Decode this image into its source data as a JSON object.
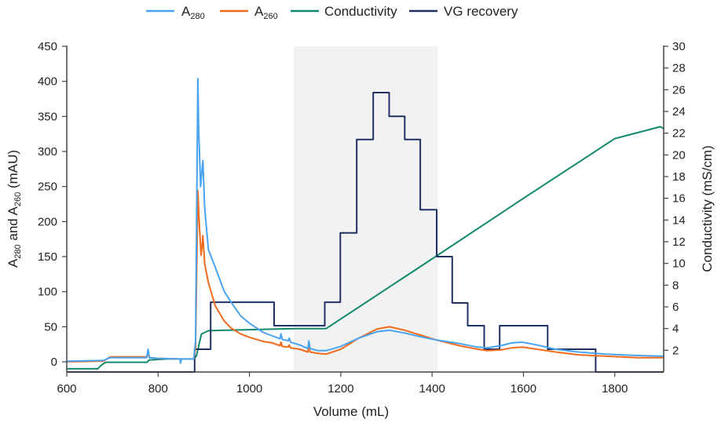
{
  "chart_data": {
    "type": "line",
    "title": "",
    "xlabel": "Volume (mL)",
    "ylabel": {
      "main": "A",
      "sub1": "280",
      "mid": " and A",
      "sub2": "260",
      "tail": " (mAU)"
    },
    "y2label": "Conductivity (mS/cm)",
    "xlim": [
      600,
      1907
    ],
    "ylim": [
      -14.5,
      450
    ],
    "y2lim": [
      0,
      30
    ],
    "xticks": [
      600,
      800,
      1000,
      1200,
      1400,
      1600,
      1800
    ],
    "yticks": [
      0,
      50,
      100,
      150,
      200,
      250,
      300,
      350,
      400,
      450
    ],
    "y2ticks": [
      2,
      4,
      6,
      8,
      10,
      12,
      14,
      16,
      18,
      20,
      22,
      24,
      26,
      28,
      30
    ],
    "grid": false,
    "legend_position": "top-center",
    "shaded_region": {
      "x0": 1097,
      "x1": 1413,
      "color": "#f2f2f2"
    },
    "series": [
      {
        "name": "A280",
        "name_main": "A",
        "name_sub": "280",
        "color": "#4aa3f0",
        "axis": "left",
        "points": [
          [
            600,
            1
          ],
          [
            680,
            2
          ],
          [
            695,
            6
          ],
          [
            775,
            6
          ],
          [
            778,
            18
          ],
          [
            781,
            6
          ],
          [
            800,
            5
          ],
          [
            848,
            4
          ],
          [
            849,
            -2
          ],
          [
            851,
            4
          ],
          [
            878,
            4
          ],
          [
            882,
            30
          ],
          [
            885,
            250
          ],
          [
            887,
            404
          ],
          [
            889,
            330
          ],
          [
            893,
            250
          ],
          [
            897,
            280
          ],
          [
            898,
            287
          ],
          [
            902,
            220
          ],
          [
            910,
            160
          ],
          [
            925,
            135
          ],
          [
            945,
            100
          ],
          [
            960,
            85
          ],
          [
            980,
            66
          ],
          [
            1000,
            55
          ],
          [
            1030,
            42
          ],
          [
            1050,
            37
          ],
          [
            1067,
            33
          ],
          [
            1069,
            40
          ],
          [
            1072,
            32
          ],
          [
            1085,
            30
          ],
          [
            1087,
            34
          ],
          [
            1090,
            28
          ],
          [
            1110,
            24
          ],
          [
            1128,
            19
          ],
          [
            1130,
            30
          ],
          [
            1133,
            19
          ],
          [
            1150,
            16
          ],
          [
            1168,
            16
          ],
          [
            1200,
            22
          ],
          [
            1240,
            34
          ],
          [
            1280,
            43
          ],
          [
            1307,
            45
          ],
          [
            1340,
            41
          ],
          [
            1380,
            35
          ],
          [
            1410,
            31
          ],
          [
            1460,
            26
          ],
          [
            1500,
            21
          ],
          [
            1520,
            20
          ],
          [
            1550,
            23
          ],
          [
            1575,
            27
          ],
          [
            1598,
            28
          ],
          [
            1630,
            24
          ],
          [
            1670,
            18
          ],
          [
            1720,
            14
          ],
          [
            1780,
            11
          ],
          [
            1850,
            9
          ],
          [
            1907,
            8
          ]
        ]
      },
      {
        "name": "A260",
        "name_main": "A",
        "name_sub": "260",
        "color": "#f26a1b",
        "axis": "left",
        "points": [
          [
            600,
            0
          ],
          [
            680,
            1
          ],
          [
            695,
            7
          ],
          [
            775,
            7
          ],
          [
            778,
            15
          ],
          [
            781,
            6
          ],
          [
            800,
            5
          ],
          [
            848,
            4
          ],
          [
            849,
            0
          ],
          [
            851,
            4
          ],
          [
            878,
            4
          ],
          [
            882,
            20
          ],
          [
            885,
            150
          ],
          [
            887,
            244
          ],
          [
            890,
            200
          ],
          [
            894,
            152
          ],
          [
            897,
            170
          ],
          [
            898,
            180
          ],
          [
            902,
            140
          ],
          [
            910,
            113
          ],
          [
            925,
            80
          ],
          [
            945,
            58
          ],
          [
            960,
            48
          ],
          [
            980,
            40
          ],
          [
            1000,
            35
          ],
          [
            1030,
            29
          ],
          [
            1050,
            27
          ],
          [
            1067,
            23
          ],
          [
            1069,
            28
          ],
          [
            1072,
            22
          ],
          [
            1085,
            21
          ],
          [
            1087,
            24
          ],
          [
            1090,
            20
          ],
          [
            1110,
            18
          ],
          [
            1128,
            14
          ],
          [
            1130,
            22
          ],
          [
            1133,
            14
          ],
          [
            1150,
            12
          ],
          [
            1168,
            11
          ],
          [
            1200,
            18
          ],
          [
            1240,
            34
          ],
          [
            1280,
            47
          ],
          [
            1307,
            50
          ],
          [
            1340,
            45
          ],
          [
            1380,
            37
          ],
          [
            1410,
            31
          ],
          [
            1460,
            23
          ],
          [
            1500,
            18
          ],
          [
            1520,
            16
          ],
          [
            1550,
            17
          ],
          [
            1575,
            20
          ],
          [
            1598,
            21
          ],
          [
            1630,
            18
          ],
          [
            1670,
            14
          ],
          [
            1720,
            10
          ],
          [
            1780,
            8
          ],
          [
            1850,
            6
          ],
          [
            1907,
            6
          ]
        ]
      },
      {
        "name": "Conductivity",
        "color": "#12896e",
        "axis": "right",
        "points": [
          [
            600,
            0.3
          ],
          [
            668,
            0.3
          ],
          [
            675,
            0.6
          ],
          [
            685,
            0.9
          ],
          [
            776,
            0.9
          ],
          [
            780,
            1.1
          ],
          [
            820,
            1.2
          ],
          [
            878,
            1.2
          ],
          [
            884,
            1.5
          ],
          [
            895,
            3.5
          ],
          [
            910,
            3.8
          ],
          [
            950,
            3.85
          ],
          [
            1000,
            3.9
          ],
          [
            1050,
            3.95
          ],
          [
            1100,
            4.0
          ],
          [
            1168,
            4.0
          ],
          [
            1410,
            10.7
          ],
          [
            1600,
            16.0
          ],
          [
            1800,
            21.5
          ],
          [
            1900,
            22.6
          ],
          [
            1907,
            22.4
          ]
        ]
      },
      {
        "name": "VG recovery",
        "color": "#1f3163",
        "axis": "left",
        "points": [
          [
            600,
            -14.5
          ],
          [
            880,
            -14.5
          ],
          [
            880,
            18
          ],
          [
            915,
            18
          ],
          [
            915,
            85
          ],
          [
            1054,
            85
          ],
          [
            1054,
            51.5
          ],
          [
            1165,
            51.5
          ],
          [
            1165,
            85
          ],
          [
            1199,
            85
          ],
          [
            1199,
            184
          ],
          [
            1235,
            184
          ],
          [
            1235,
            317
          ],
          [
            1271,
            317
          ],
          [
            1271,
            384
          ],
          [
            1306,
            384
          ],
          [
            1306,
            350
          ],
          [
            1340,
            350
          ],
          [
            1340,
            317
          ],
          [
            1374,
            317
          ],
          [
            1374,
            217
          ],
          [
            1410,
            217
          ],
          [
            1410,
            150
          ],
          [
            1444,
            150
          ],
          [
            1444,
            84
          ],
          [
            1478,
            84
          ],
          [
            1478,
            51.5
          ],
          [
            1514,
            51.5
          ],
          [
            1514,
            18
          ],
          [
            1548,
            18
          ],
          [
            1548,
            51.5
          ],
          [
            1653,
            51.5
          ],
          [
            1653,
            18
          ],
          [
            1758,
            18
          ],
          [
            1758,
            -14.5
          ],
          [
            1907,
            -14.5
          ]
        ]
      }
    ]
  }
}
